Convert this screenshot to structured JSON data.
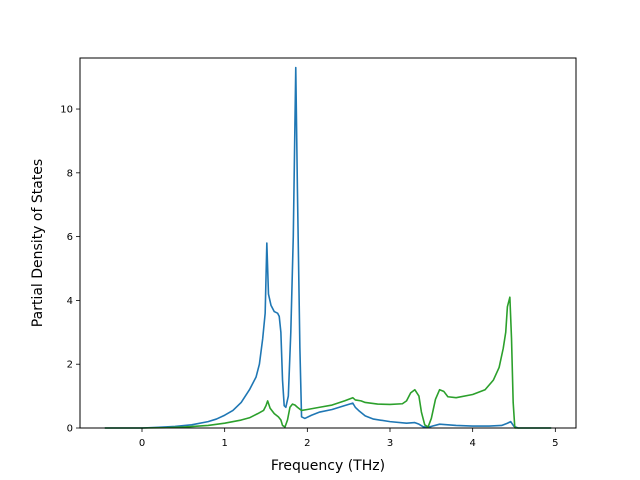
{
  "chart_data": {
    "type": "line",
    "title": "",
    "xlabel": "Frequency (THz)",
    "ylabel": "Partial Density of States",
    "xlim": [
      -0.75,
      5.25
    ],
    "ylim": [
      0,
      11.6
    ],
    "xticks": [
      0,
      1,
      2,
      3,
      4,
      5
    ],
    "yticks": [
      0,
      2,
      4,
      6,
      8,
      10
    ],
    "grid": false,
    "legend": "none",
    "series": [
      {
        "color": "#1f77b4",
        "points": [
          [
            -0.45,
            0
          ],
          [
            0.0,
            0.0
          ],
          [
            0.2,
            0.02
          ],
          [
            0.4,
            0.05
          ],
          [
            0.6,
            0.1
          ],
          [
            0.8,
            0.2
          ],
          [
            0.9,
            0.28
          ],
          [
            1.0,
            0.4
          ],
          [
            1.1,
            0.55
          ],
          [
            1.2,
            0.8
          ],
          [
            1.3,
            1.2
          ],
          [
            1.38,
            1.6
          ],
          [
            1.42,
            2.0
          ],
          [
            1.46,
            2.8
          ],
          [
            1.49,
            3.6
          ],
          [
            1.51,
            5.8
          ],
          [
            1.53,
            4.2
          ],
          [
            1.56,
            3.85
          ],
          [
            1.6,
            3.65
          ],
          [
            1.64,
            3.6
          ],
          [
            1.66,
            3.5
          ],
          [
            1.68,
            3.0
          ],
          [
            1.7,
            1.5
          ],
          [
            1.72,
            0.7
          ],
          [
            1.74,
            0.65
          ],
          [
            1.77,
            1.0
          ],
          [
            1.8,
            3.0
          ],
          [
            1.83,
            6.0
          ],
          [
            1.86,
            11.3
          ],
          [
            1.88,
            7.5
          ],
          [
            1.91,
            2.5
          ],
          [
            1.93,
            0.35
          ],
          [
            1.97,
            0.3
          ],
          [
            2.05,
            0.4
          ],
          [
            2.15,
            0.5
          ],
          [
            2.3,
            0.58
          ],
          [
            2.45,
            0.7
          ],
          [
            2.55,
            0.78
          ],
          [
            2.58,
            0.65
          ],
          [
            2.62,
            0.55
          ],
          [
            2.7,
            0.38
          ],
          [
            2.8,
            0.28
          ],
          [
            3.0,
            0.2
          ],
          [
            3.2,
            0.15
          ],
          [
            3.3,
            0.17
          ],
          [
            3.35,
            0.12
          ],
          [
            3.4,
            0.04
          ],
          [
            3.45,
            0.02
          ],
          [
            3.5,
            0.05
          ],
          [
            3.6,
            0.12
          ],
          [
            3.7,
            0.1
          ],
          [
            3.8,
            0.08
          ],
          [
            4.0,
            0.06
          ],
          [
            4.2,
            0.06
          ],
          [
            4.35,
            0.08
          ],
          [
            4.42,
            0.15
          ],
          [
            4.46,
            0.2
          ],
          [
            4.5,
            0.05
          ],
          [
            4.55,
            0
          ],
          [
            4.95,
            0
          ]
        ]
      },
      {
        "color": "#2ca02c",
        "points": [
          [
            -0.45,
            0
          ],
          [
            0.0,
            0.0
          ],
          [
            0.3,
            0.01
          ],
          [
            0.5,
            0.03
          ],
          [
            0.8,
            0.08
          ],
          [
            1.0,
            0.15
          ],
          [
            1.2,
            0.25
          ],
          [
            1.3,
            0.32
          ],
          [
            1.4,
            0.45
          ],
          [
            1.47,
            0.55
          ],
          [
            1.5,
            0.7
          ],
          [
            1.52,
            0.85
          ],
          [
            1.55,
            0.62
          ],
          [
            1.6,
            0.45
          ],
          [
            1.65,
            0.35
          ],
          [
            1.68,
            0.25
          ],
          [
            1.7,
            0.08
          ],
          [
            1.73,
            0.03
          ],
          [
            1.76,
            0.25
          ],
          [
            1.79,
            0.65
          ],
          [
            1.82,
            0.75
          ],
          [
            1.85,
            0.72
          ],
          [
            1.88,
            0.65
          ],
          [
            1.93,
            0.55
          ],
          [
            2.0,
            0.58
          ],
          [
            2.15,
            0.65
          ],
          [
            2.3,
            0.72
          ],
          [
            2.45,
            0.85
          ],
          [
            2.55,
            0.95
          ],
          [
            2.58,
            0.88
          ],
          [
            2.65,
            0.85
          ],
          [
            2.7,
            0.8
          ],
          [
            2.85,
            0.75
          ],
          [
            3.0,
            0.74
          ],
          [
            3.15,
            0.76
          ],
          [
            3.2,
            0.85
          ],
          [
            3.25,
            1.1
          ],
          [
            3.3,
            1.2
          ],
          [
            3.35,
            1.0
          ],
          [
            3.38,
            0.5
          ],
          [
            3.42,
            0.1
          ],
          [
            3.46,
            0.03
          ],
          [
            3.5,
            0.3
          ],
          [
            3.55,
            0.9
          ],
          [
            3.6,
            1.2
          ],
          [
            3.65,
            1.15
          ],
          [
            3.7,
            0.98
          ],
          [
            3.8,
            0.95
          ],
          [
            4.0,
            1.05
          ],
          [
            4.15,
            1.2
          ],
          [
            4.25,
            1.5
          ],
          [
            4.32,
            1.9
          ],
          [
            4.37,
            2.5
          ],
          [
            4.4,
            3.0
          ],
          [
            4.42,
            3.8
          ],
          [
            4.45,
            4.1
          ],
          [
            4.47,
            2.8
          ],
          [
            4.49,
            0.8
          ],
          [
            4.51,
            0
          ],
          [
            4.95,
            0
          ]
        ]
      }
    ]
  }
}
